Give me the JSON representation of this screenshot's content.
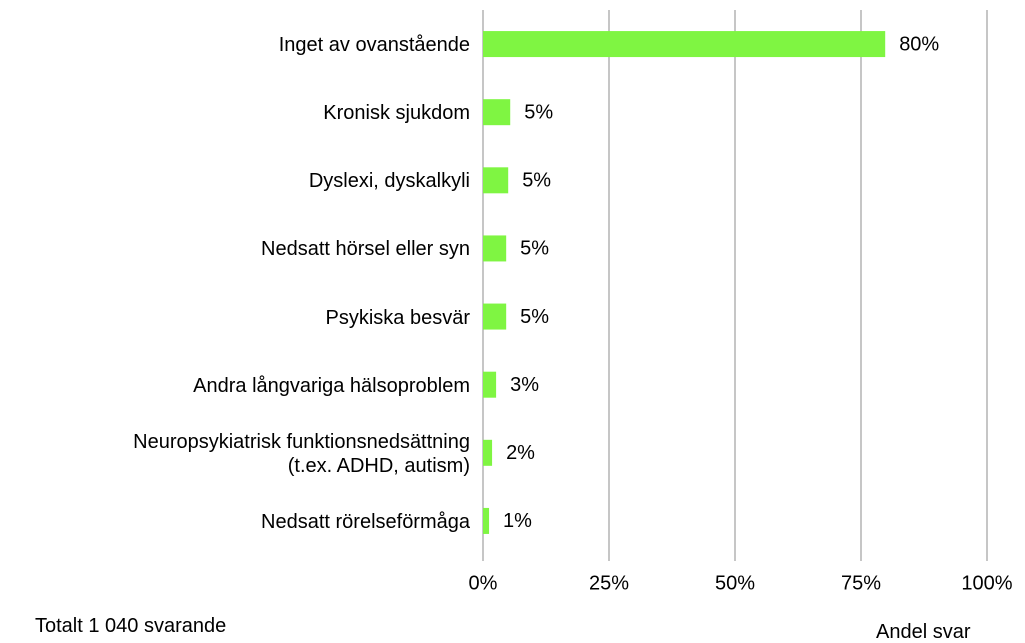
{
  "chart_data": {
    "type": "barh",
    "categories": [
      "Inget av ovanstående",
      "Kronisk sjukdom",
      "Dyslexi, dyskalkyli",
      "Nedsatt hörsel eller syn",
      "Psykiska besvär",
      "Andra långvariga hälsoproblem",
      "Neuropsykiatrisk funktionsnedsättning\n(t.ex. ADHD, autism)",
      "Nedsatt rörelseförmåga"
    ],
    "values": [
      79.8,
      5.4,
      5.0,
      4.6,
      4.6,
      2.6,
      1.8,
      1.2
    ],
    "value_labels": [
      "80%",
      "5%",
      "5%",
      "5%",
      "5%",
      "3%",
      "2%",
      "1%"
    ],
    "color": "#7ff542",
    "xlim": [
      0,
      100
    ],
    "xticks": [
      {
        "value": 0,
        "label": "0%"
      },
      {
        "value": 25,
        "label": "25%"
      },
      {
        "value": 50,
        "label": "50%"
      },
      {
        "value": 75,
        "label": "75%"
      },
      {
        "value": 100,
        "label": "100%"
      }
    ],
    "grid": true,
    "xlabel": "Andel svar",
    "note": "Totalt 1 040 svarande"
  }
}
